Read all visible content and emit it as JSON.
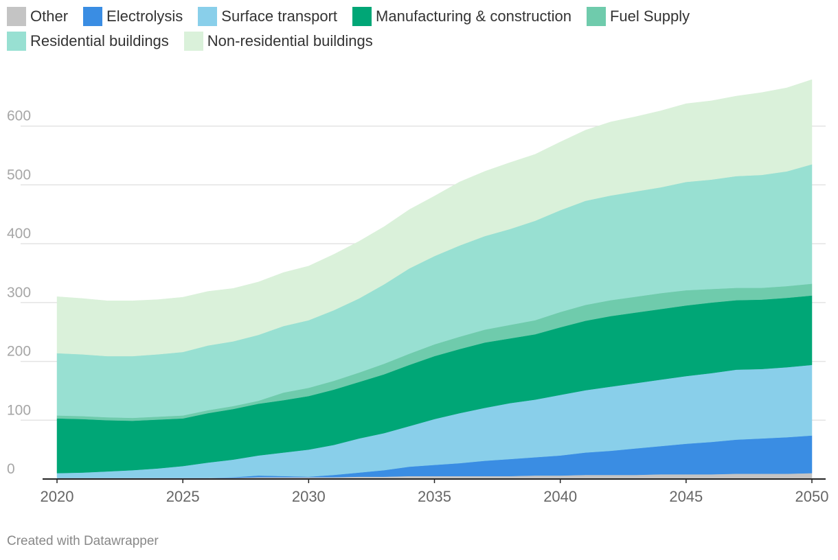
{
  "chart_data": {
    "type": "area",
    "stacked": true,
    "title": "",
    "xlabel": "",
    "ylabel": "",
    "xlim": [
      2020,
      2050
    ],
    "ylim": [
      0,
      700
    ],
    "x_ticks": [
      2020,
      2025,
      2030,
      2035,
      2040,
      2045,
      2050
    ],
    "y_ticks": [
      0,
      100,
      200,
      300,
      400,
      500,
      600
    ],
    "grid": true,
    "legend_position": "top",
    "x": [
      2020,
      2021,
      2022,
      2023,
      2024,
      2025,
      2026,
      2027,
      2028,
      2029,
      2030,
      2031,
      2032,
      2033,
      2034,
      2035,
      2036,
      2037,
      2038,
      2039,
      2040,
      2041,
      2042,
      2043,
      2044,
      2045,
      2046,
      2047,
      2048,
      2049,
      2050
    ],
    "series": [
      {
        "name": "Other",
        "color": "#c4c4c4",
        "values": [
          2,
          2,
          2,
          2,
          2,
          2,
          2,
          2,
          3,
          3,
          3,
          3,
          4,
          4,
          5,
          5,
          5,
          5,
          5,
          6,
          6,
          7,
          7,
          7,
          8,
          8,
          8,
          9,
          9,
          9,
          10
        ]
      },
      {
        "name": "Electrolysis",
        "color": "#3a8de3",
        "values": [
          0,
          0,
          0,
          0,
          0,
          0,
          0,
          1,
          3,
          2,
          1,
          4,
          7,
          11,
          16,
          19,
          22,
          26,
          29,
          31,
          34,
          38,
          41,
          45,
          48,
          52,
          55,
          58,
          60,
          62,
          64
        ]
      },
      {
        "name": "Surface transport",
        "color": "#89cfea",
        "values": [
          8,
          9,
          11,
          13,
          16,
          20,
          26,
          30,
          34,
          40,
          46,
          51,
          58,
          63,
          69,
          78,
          85,
          90,
          95,
          98,
          103,
          106,
          109,
          111,
          113,
          115,
          117,
          119,
          118,
          119,
          120
        ]
      },
      {
        "name": "Manufacturing & construction",
        "color": "#00a676",
        "values": [
          93,
          91,
          87,
          84,
          83,
          81,
          84,
          86,
          88,
          89,
          91,
          94,
          96,
          100,
          104,
          107,
          109,
          111,
          110,
          111,
          115,
          118,
          120,
          120,
          120,
          120,
          120,
          118,
          118,
          118,
          118
        ]
      },
      {
        "name": "Fuel Supply",
        "color": "#6fcbac",
        "values": [
          5,
          5,
          5,
          5,
          5,
          5,
          5,
          5,
          5,
          13,
          14,
          15,
          16,
          18,
          19,
          20,
          21,
          22,
          23,
          24,
          26,
          27,
          27,
          27,
          27,
          26,
          23,
          21,
          20,
          20,
          20
        ]
      },
      {
        "name": "Residential buildings",
        "color": "#98e0d2",
        "values": [
          106,
          105,
          104,
          105,
          106,
          108,
          110,
          110,
          112,
          113,
          115,
          120,
          126,
          135,
          145,
          150,
          155,
          159,
          163,
          169,
          173,
          177,
          178,
          179,
          180,
          184,
          186,
          190,
          192,
          195,
          203
        ]
      },
      {
        "name": "Non-residential buildings",
        "color": "#daf1da",
        "values": [
          96,
          95,
          94,
          94,
          93,
          93,
          92,
          90,
          90,
          91,
          92,
          95,
          97,
          98,
          100,
          102,
          108,
          110,
          113,
          113,
          116,
          120,
          125,
          127,
          130,
          133,
          134,
          136,
          140,
          142,
          144
        ]
      }
    ]
  },
  "footer": {
    "credit": "Created with Datawrapper"
  }
}
